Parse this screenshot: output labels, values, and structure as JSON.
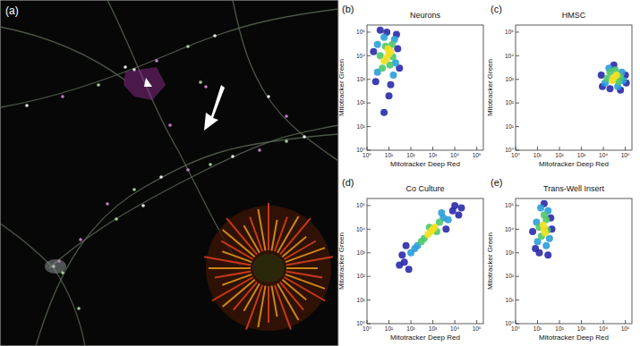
{
  "image_panel": {
    "label": "(a)"
  },
  "chart_data": [
    {
      "type": "scatter",
      "title": "Neurons",
      "annotations": [
        "(b)"
      ],
      "x_label": "Mitotracker Deep Red",
      "y_label": "Mitotracker Green",
      "log": true,
      "grid": false,
      "marker": "circle",
      "xlim": [
        1,
        200000
      ],
      "ylim": [
        1,
        200000
      ],
      "xticks": [
        {
          "value": 1,
          "label": "10⁰"
        },
        {
          "value": 10,
          "label": "10¹"
        },
        {
          "value": 100,
          "label": "10²"
        },
        {
          "value": 1000,
          "label": "10³"
        },
        {
          "value": 10000,
          "label": "10⁴"
        },
        {
          "value": 100000,
          "label": "10⁵"
        }
      ],
      "yticks": [
        {
          "value": 1,
          "label": "10⁰"
        },
        {
          "value": 10,
          "label": "10¹"
        },
        {
          "value": 100,
          "label": "10²"
        },
        {
          "value": 1000,
          "label": "10³"
        },
        {
          "value": 10000,
          "label": "10⁴"
        },
        {
          "value": 100000,
          "label": "10⁵"
        }
      ],
      "x": [
        2.5,
        8,
        25,
        4,
        12,
        30,
        2,
        10,
        6,
        22,
        3,
        18,
        6,
        20,
        3,
        16,
        5,
        14,
        7,
        11,
        15,
        4,
        8,
        10,
        6,
        12,
        9
      ],
      "values": [
        800,
        100000,
        20000,
        120000,
        600,
        3000,
        15000,
        200,
        40,
        80000,
        2000,
        50000,
        60000,
        5000,
        30000,
        1500,
        3000,
        30000,
        25000,
        4000,
        9000,
        10000,
        8000,
        12000,
        6000,
        15000,
        20000
      ],
      "colors": [
        "#2a2aa8",
        "#2a2aa8",
        "#2a2aa8",
        "#2a2aa8",
        "#2a2aa8",
        "#2a2aa8",
        "#2a2aa8",
        "#2a2aa8",
        "#2a2aa8",
        "#2a2aa8",
        "#2a9fd8",
        "#2a9fd8",
        "#2a9fd8",
        "#2a9fd8",
        "#2a9fd8",
        "#2a9fd8",
        "#4cc86a",
        "#4cc86a",
        "#4cc86a",
        "#4cc86a",
        "#4cc86a",
        "#4cc86a",
        "#f0e020",
        "#f0e020",
        "#f0e020",
        "#f0e020",
        "#f0e020"
      ]
    },
    {
      "type": "scatter",
      "title": "HMSC",
      "annotations": [
        "(c)"
      ],
      "x_label": "Mitotracker Deep Red",
      "y_label": "Mitotracker Green",
      "log": true,
      "grid": false,
      "marker": "circle",
      "xlim": [
        1,
        200000
      ],
      "ylim": [
        1,
        200000
      ],
      "xticks": [
        {
          "value": 1,
          "label": "10⁰"
        },
        {
          "value": 10,
          "label": "10¹"
        },
        {
          "value": 100,
          "label": "10²"
        },
        {
          "value": 1000,
          "label": "10³"
        },
        {
          "value": 10000,
          "label": "10⁴"
        },
        {
          "value": 100000,
          "label": "10⁵"
        }
      ],
      "yticks": [
        {
          "value": 1,
          "label": "10⁰"
        },
        {
          "value": 10,
          "label": "10¹"
        },
        {
          "value": 100,
          "label": "10²"
        },
        {
          "value": 1000,
          "label": "10³"
        },
        {
          "value": 10000,
          "label": "10⁴"
        },
        {
          "value": 100000,
          "label": "10⁵"
        }
      ],
      "x": [
        9000,
        100000,
        30000,
        60000,
        8000,
        110000,
        20000,
        12000,
        70000,
        45000,
        18000,
        80000,
        20000,
        50000,
        35000,
        15000,
        60000,
        30000,
        40000,
        25000
      ],
      "values": [
        500,
        1500,
        4000,
        350,
        1500,
        700,
        400,
        700,
        2000,
        500,
        3000,
        900,
        2000,
        800,
        2500,
        1100,
        1300,
        1200,
        1500,
        900
      ],
      "colors": [
        "#2a2aa8",
        "#2a2aa8",
        "#2a2aa8",
        "#2a2aa8",
        "#2a2aa8",
        "#2a2aa8",
        "#2a2aa8",
        "#2a9fd8",
        "#2a9fd8",
        "#2a9fd8",
        "#2a9fd8",
        "#2a9fd8",
        "#4cc86a",
        "#4cc86a",
        "#4cc86a",
        "#4cc86a",
        "#4cc86a",
        "#f0e020",
        "#f0e020",
        "#f0e020"
      ]
    },
    {
      "type": "scatter",
      "title": "Co Culture",
      "annotations": [
        "(d)"
      ],
      "x_label": "Mitotracker Deep Red",
      "y_label": "Mitotracker Green",
      "log": true,
      "grid": false,
      "marker": "circle",
      "xlim": [
        1,
        200000
      ],
      "ylim": [
        1,
        200000
      ],
      "xticks": [
        {
          "value": 1,
          "label": "10⁰"
        },
        {
          "value": 10,
          "label": "10¹"
        },
        {
          "value": 100,
          "label": "10²"
        },
        {
          "value": 1000,
          "label": "10³"
        },
        {
          "value": 10000,
          "label": "10⁴"
        },
        {
          "value": 100000,
          "label": "10⁵"
        }
      ],
      "yticks": [
        {
          "value": 1,
          "label": "10⁰"
        },
        {
          "value": 10,
          "label": "10¹"
        },
        {
          "value": 100,
          "label": "10²"
        },
        {
          "value": 1000,
          "label": "10³"
        },
        {
          "value": 10000,
          "label": "10⁴"
        },
        {
          "value": 100000,
          "label": "10⁵"
        }
      ],
      "x": [
        50,
        60,
        8000,
        10000,
        30,
        4000,
        20000,
        80,
        15000,
        40,
        200,
        3000,
        150,
        5000,
        2500,
        100,
        400,
        2000,
        300,
        1500,
        700,
        800,
        1200,
        600,
        1000
      ],
      "values": [
        400,
        2000,
        60000,
        100000,
        300,
        10000,
        80000,
        200,
        40000,
        800,
        2000,
        30000,
        1500,
        25000,
        50000,
        1000,
        4000,
        20000,
        3000,
        8000,
        12000,
        8000,
        12000,
        6000,
        10000
      ],
      "colors": [
        "#2a2aa8",
        "#2a2aa8",
        "#2a2aa8",
        "#2a2aa8",
        "#2a2aa8",
        "#2a2aa8",
        "#2a2aa8",
        "#2a2aa8",
        "#2a2aa8",
        "#2a2aa8",
        "#2a9fd8",
        "#2a9fd8",
        "#2a9fd8",
        "#2a9fd8",
        "#2a9fd8",
        "#2a9fd8",
        "#4cc86a",
        "#4cc86a",
        "#4cc86a",
        "#4cc86a",
        "#4cc86a",
        "#f0e020",
        "#f0e020",
        "#f0e020",
        "#f0e020"
      ]
    },
    {
      "type": "scatter",
      "title": "Trans-Well Insert",
      "annotations": [
        "(e)"
      ],
      "x_label": "Mitotracker Deep Red",
      "y_label": "Mitotracker Green",
      "log": true,
      "grid": false,
      "marker": "circle",
      "xlim": [
        1,
        200000
      ],
      "ylim": [
        1,
        200000
      ],
      "xticks": [
        {
          "value": 1,
          "label": "10⁰"
        },
        {
          "value": 10,
          "label": "10¹"
        },
        {
          "value": 100,
          "label": "10²"
        },
        {
          "value": 1000,
          "label": "10³"
        },
        {
          "value": 10000,
          "label": "10⁴"
        },
        {
          "value": 100000,
          "label": "10⁵"
        }
      ],
      "yticks": [
        {
          "value": 1,
          "label": "10⁰"
        },
        {
          "value": 10,
          "label": "10¹"
        },
        {
          "value": 100,
          "label": "10²"
        },
        {
          "value": 1000,
          "label": "10³"
        },
        {
          "value": 10000,
          "label": "10⁴"
        },
        {
          "value": 100000,
          "label": "10⁵"
        }
      ],
      "x": [
        8,
        20,
        40,
        6,
        30,
        12,
        45,
        10,
        30,
        14,
        35,
        9,
        25,
        15,
        25,
        12,
        28,
        20,
        20,
        18,
        22
      ],
      "values": [
        1500,
        120000,
        30000,
        8000,
        800,
        1000,
        10000,
        3000,
        60000,
        80000,
        4000,
        20000,
        2000,
        5000,
        25000,
        12000,
        9000,
        40000,
        10000,
        15000,
        7000
      ],
      "colors": [
        "#2a2aa8",
        "#2a2aa8",
        "#2a2aa8",
        "#2a2aa8",
        "#2a2aa8",
        "#2a2aa8",
        "#2a2aa8",
        "#2a9fd8",
        "#2a9fd8",
        "#2a9fd8",
        "#2a9fd8",
        "#2a9fd8",
        "#2a9fd8",
        "#4cc86a",
        "#4cc86a",
        "#4cc86a",
        "#4cc86a",
        "#4cc86a",
        "#f0e020",
        "#f0e020",
        "#f0e020"
      ]
    }
  ]
}
